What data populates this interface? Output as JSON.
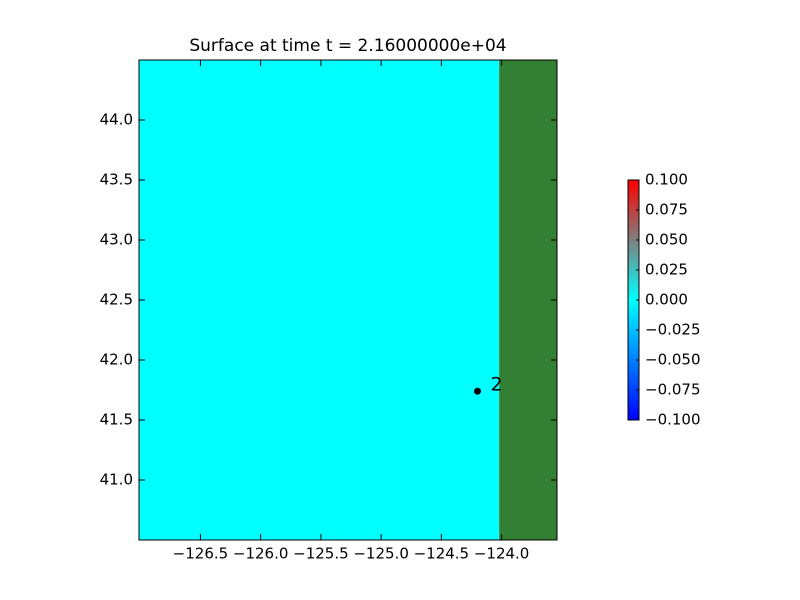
{
  "chart_data": {
    "type": "surface-map",
    "title": "Surface at time t = 2.16000000e+04",
    "xlim": [
      -127.01,
      -123.54
    ],
    "ylim": [
      40.5,
      44.5
    ],
    "xticks": [
      {
        "value": -126.5,
        "label": "−126.5"
      },
      {
        "value": -126.0,
        "label": "−126.0"
      },
      {
        "value": -125.5,
        "label": "−125.5"
      },
      {
        "value": -125.0,
        "label": "−125.0"
      },
      {
        "value": -124.5,
        "label": "−124.5"
      },
      {
        "value": -124.0,
        "label": "−124.0"
      }
    ],
    "yticks": [
      {
        "value": 41,
        "label": "41.0"
      },
      {
        "value": 41.5,
        "label": "41.5"
      },
      {
        "value": 42,
        "label": "42.0"
      },
      {
        "value": 42.5,
        "label": "42.5"
      },
      {
        "value": 43,
        "label": "43.0"
      },
      {
        "value": 43.5,
        "label": "43.5"
      },
      {
        "value": 44,
        "label": "44.0"
      }
    ],
    "surface_value": 0,
    "shoreline_x": -124.02,
    "land_color": "#337f33",
    "gauges": [
      {
        "label": "2",
        "x": -124.2,
        "y": 41.74
      }
    ],
    "colorbar": {
      "lim": [
        -0.1,
        0.1
      ],
      "colors": [
        "#0000ff",
        "#00ffff",
        "#ff0000"
      ],
      "ticks": [
        {
          "value": -0.1,
          "label": "−0.100"
        },
        {
          "value": -0.075,
          "label": "−0.075"
        },
        {
          "value": -0.05,
          "label": "−0.050"
        },
        {
          "value": -0.025,
          "label": "−0.025"
        },
        {
          "value": 0,
          "label": "0.000"
        },
        {
          "value": 0.025,
          "label": "0.025"
        },
        {
          "value": 0.05,
          "label": "0.050"
        },
        {
          "value": 0.075,
          "label": "0.075"
        },
        {
          "value": 0.1,
          "label": "0.100"
        }
      ]
    }
  }
}
